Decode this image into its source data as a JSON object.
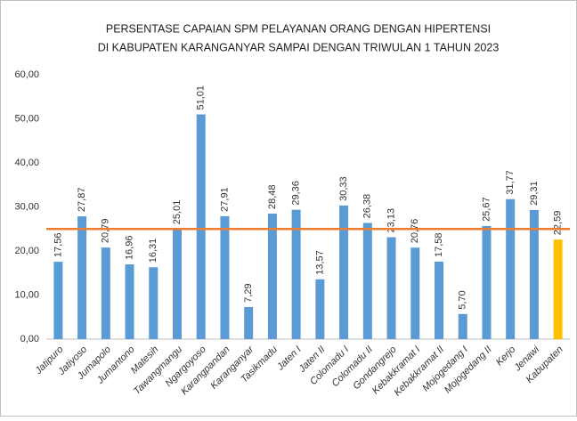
{
  "chart_data": {
    "type": "bar",
    "title": [
      "PERSENTASE CAPAIAN SPM PELAYANAN ORANG DENGAN HIPERTENSI",
      "DI KABUPATEN KARANGANYAR SAMPAI DENGAN TRIWULAN 1 TAHUN 2023"
    ],
    "categories": [
      "Jatipuro",
      "Jatiyoso",
      "Jumapolo",
      "Jumantono",
      "Matesih",
      "Tawangmangu",
      "Ngargoyoso",
      "Karangpandan",
      "Karanganyar",
      "Tasikmadu",
      "Jaten I",
      "Jaten II",
      "Colomadu I",
      "Colomadu II",
      "Gondangrejo",
      "Kebakkramat I",
      "Kebakkramat II",
      "Mojogedang I",
      "Mojogedang II",
      "Kerjo",
      "Jenawi",
      "Kabupaten"
    ],
    "values": [
      17.56,
      27.87,
      20.79,
      16.96,
      16.31,
      25.01,
      51.01,
      27.91,
      7.29,
      28.48,
      29.36,
      13.57,
      30.33,
      26.38,
      23.13,
      20.76,
      17.58,
      5.7,
      25.67,
      31.77,
      29.31,
      22.59
    ],
    "value_labels": [
      "17,56",
      "27,87",
      "20,79",
      "16,96",
      "16,31",
      "25,01",
      "51,01",
      "27,91",
      "7,29",
      "28,48",
      "29,36",
      "13,57",
      "30,33",
      "26,38",
      "23,13",
      "20,76",
      "17,58",
      "5,70",
      "25,67",
      "31,77",
      "29,31",
      "22,59"
    ],
    "colors": [
      "#5b9bd5",
      "#5b9bd5",
      "#5b9bd5",
      "#5b9bd5",
      "#5b9bd5",
      "#5b9bd5",
      "#5b9bd5",
      "#5b9bd5",
      "#5b9bd5",
      "#5b9bd5",
      "#5b9bd5",
      "#5b9bd5",
      "#5b9bd5",
      "#5b9bd5",
      "#5b9bd5",
      "#5b9bd5",
      "#5b9bd5",
      "#5b9bd5",
      "#5b9bd5",
      "#5b9bd5",
      "#5b9bd5",
      "#ffc000"
    ],
    "reference_line": {
      "value": 25,
      "color": "#ed7d31"
    },
    "ylim": [
      0,
      60
    ],
    "yticks": [
      {
        "value": 0,
        "label": "0,00"
      },
      {
        "value": 10,
        "label": "10,00"
      },
      {
        "value": 20,
        "label": "20,00"
      },
      {
        "value": 30,
        "label": "30,00"
      },
      {
        "value": 40,
        "label": "40,00"
      },
      {
        "value": 50,
        "label": "50,00"
      },
      {
        "value": 60,
        "label": "60,00"
      }
    ],
    "grid": false
  }
}
